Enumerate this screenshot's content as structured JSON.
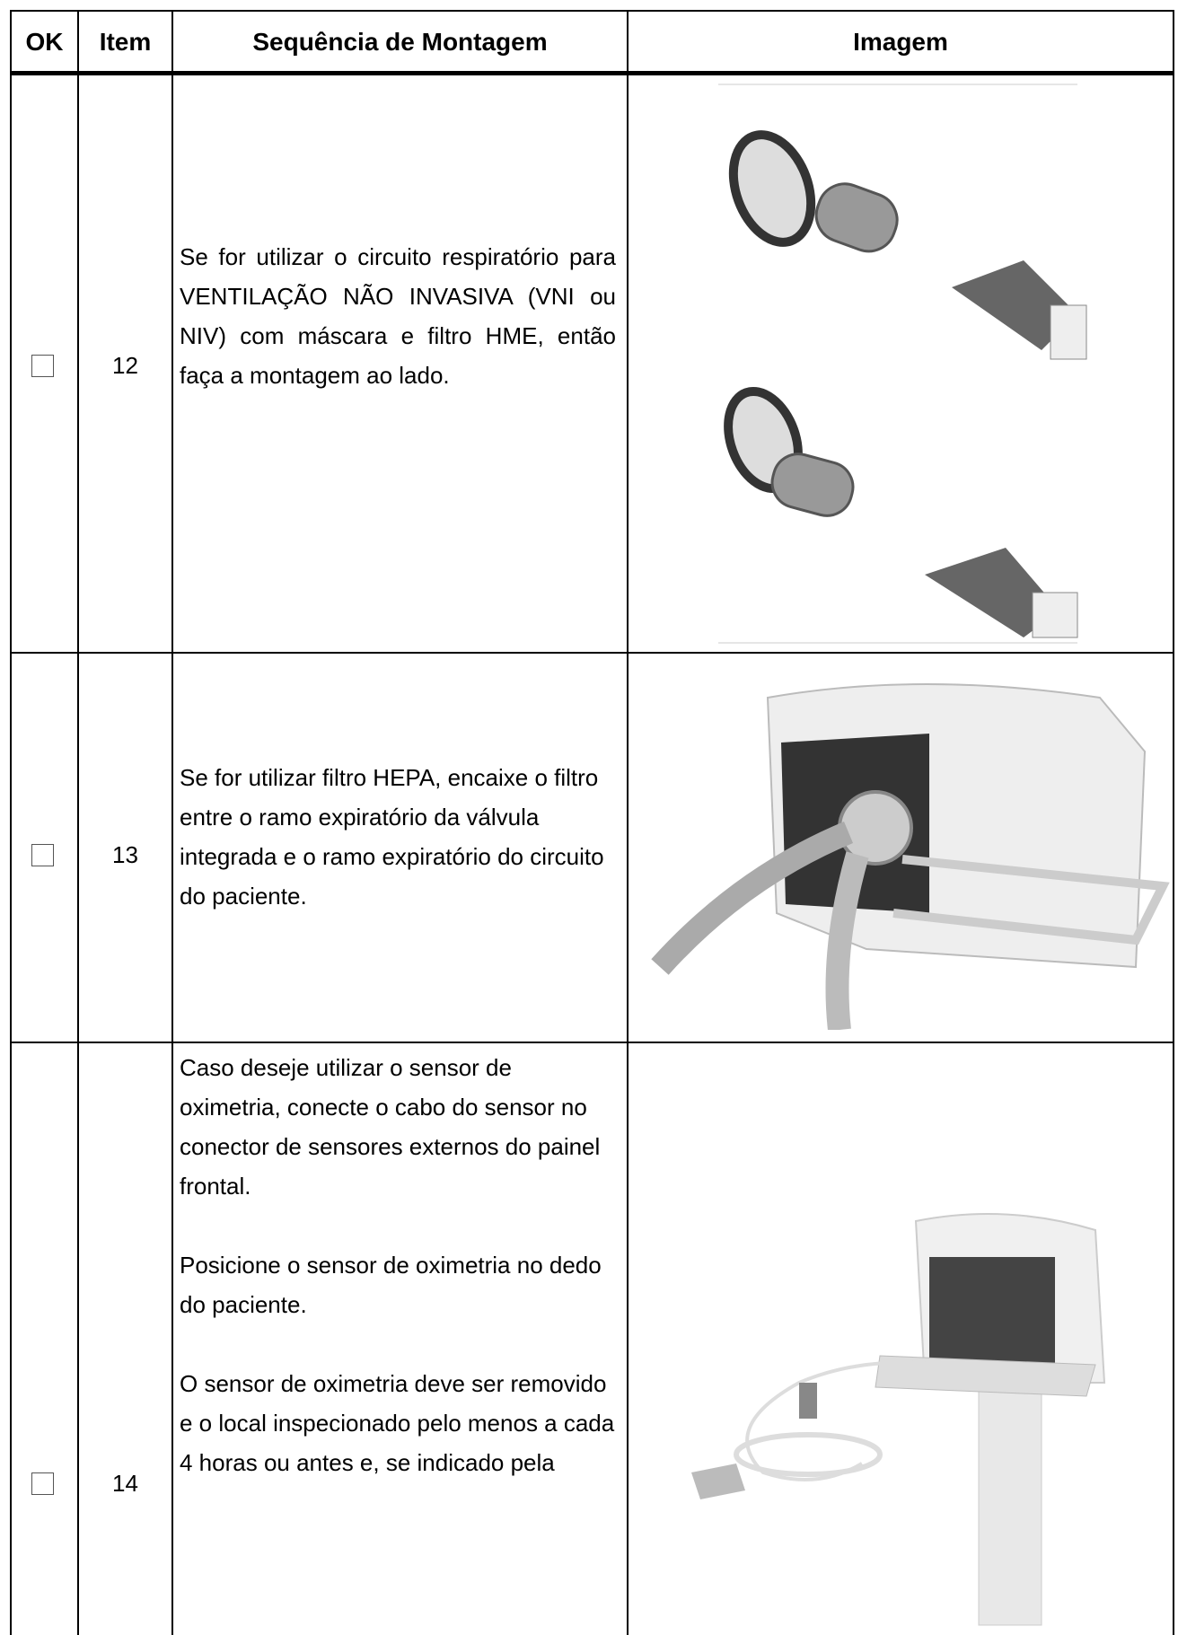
{
  "table": {
    "header": [
      "OK",
      "Item",
      "Sequência de Montagem",
      "Imagem"
    ],
    "rows": [
      {
        "item": "12",
        "text": [
          "Se for utilizar o circuito respiratório para VENTILAÇÃO NÃO INVASIVA (VNI ou NIV) com máscara e filtro HME, então faça a montagem ao lado."
        ]
      },
      {
        "item": "13",
        "text": [
          "Se for utilizar filtro HEPA, encaixe o filtro entre o ramo expiratório da válvula integrada e o ramo expiratório do circuito do paciente."
        ]
      },
      {
        "item": "14",
        "text": [
          "Caso deseje utilizar o sensor de oximetria, conecte o cabo do sensor no conector de sensores externos do painel frontal.",
          "Posicione o sensor de oximetria no dedo do paciente.",
          "O sensor de oximetria deve ser removido e o local inspecionado pelo menos a cada 4 horas ou antes e, se indicado pela"
        ]
      }
    ]
  }
}
